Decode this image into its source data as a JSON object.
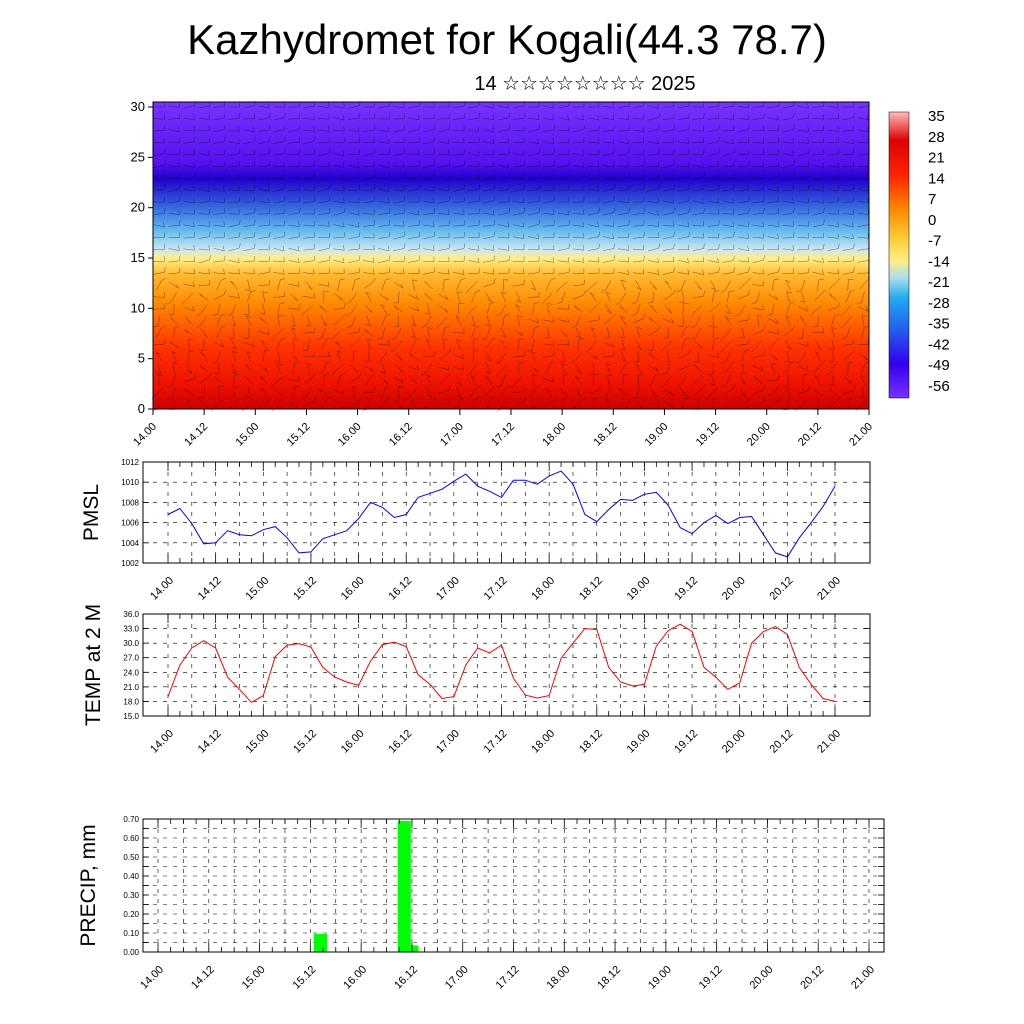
{
  "header": {
    "title": "Kazhydromet for Kogali(44.3 78.7)",
    "subtitle": "14 ☆☆☆☆☆☆☆☆ 2025"
  },
  "colors": {
    "pmsl_line": "#0000ff",
    "temp_line": "#ff0000",
    "precip_bar": "#00ff00",
    "colorbar_hot": "#ff0000",
    "colorbar_mid": "#ffee55",
    "colorbar_cold": "#6600ff"
  },
  "chart_data": [
    {
      "type": "heatmap",
      "name": "cross-section",
      "x_tick_labels": [
        "14.00",
        "14.12",
        "15.00",
        "15.12",
        "16.00",
        "16.12",
        "17.00",
        "17.12",
        "18.00",
        "18.12",
        "19.00",
        "19.12",
        "20.00",
        "20.12",
        "21.00"
      ],
      "y_tick_labels": [
        "0",
        "5",
        "10",
        "15",
        "20",
        "25",
        "30"
      ],
      "ylim": [
        0,
        30.5
      ],
      "colorbar_labels": [
        "35",
        "28",
        "21",
        "14",
        "7",
        "0",
        "-7",
        "-14",
        "-21",
        "-28",
        "-35",
        "-42",
        "-49",
        "-56"
      ],
      "colorbar_range": [
        -60,
        38
      ]
    },
    {
      "type": "line",
      "name": "pmsl",
      "ylabel": "PMSL",
      "ylim": [
        1002,
        1012
      ],
      "y_tick_labels": [
        "1002",
        "1004",
        "1006",
        "1008",
        "1010",
        "1012"
      ],
      "x_tick_labels": [
        "14.00",
        "14.12",
        "15.00",
        "15.12",
        "16.00",
        "16.12",
        "17.00",
        "17.12",
        "18.00",
        "18.12",
        "19.00",
        "19.12",
        "20.00",
        "20.12",
        "21.00"
      ],
      "grid": true,
      "values": [
        1006.8,
        1007.4,
        1005.9,
        1003.9,
        1004.0,
        1005.2,
        1004.8,
        1004.7,
        1005.3,
        1005.6,
        1004.5,
        1003.0,
        1003.1,
        1004.4,
        1004.8,
        1005.2,
        1006.4,
        1008.0,
        1007.5,
        1006.5,
        1006.8,
        1008.5,
        1008.9,
        1009.3,
        1010.1,
        1010.8,
        1009.6,
        1009.1,
        1008.5,
        1010.2,
        1010.2,
        1009.8,
        1010.6,
        1011.1,
        1009.8,
        1006.8,
        1006.1,
        1007.3,
        1008.3,
        1008.2,
        1008.8,
        1009.0,
        1007.7,
        1005.5,
        1004.9,
        1006.0,
        1006.7,
        1005.9,
        1006.5,
        1006.6,
        1004.8,
        1003.0,
        1002.6,
        1004.5,
        1006.0,
        1007.6,
        1009.6
      ]
    },
    {
      "type": "line",
      "name": "temp2m",
      "ylabel": "TEMP at 2 M",
      "ylim": [
        15,
        36
      ],
      "y_tick_labels": [
        "15.0",
        "18.0",
        "21.0",
        "24.0",
        "27.0",
        "30.0",
        "33.0",
        "36.0"
      ],
      "x_tick_labels": [
        "14.00",
        "14.12",
        "15.00",
        "15.12",
        "16.00",
        "16.12",
        "17.00",
        "17.12",
        "18.00",
        "18.12",
        "19.00",
        "19.12",
        "20.00",
        "20.12",
        "21.00"
      ],
      "grid": true,
      "values": [
        19.0,
        25.5,
        29.0,
        30.5,
        29.0,
        23.0,
        20.5,
        17.8,
        19.2,
        27.2,
        29.6,
        29.9,
        29.2,
        25.0,
        23.0,
        22.0,
        21.3,
        26.3,
        29.7,
        30.2,
        29.3,
        23.5,
        21.5,
        18.6,
        19.0,
        25.5,
        29.0,
        28.0,
        29.6,
        22.8,
        19.3,
        18.7,
        19.2,
        26.9,
        30.0,
        33.0,
        32.8,
        25.0,
        22.0,
        21.2,
        21.5,
        29.4,
        32.6,
        33.9,
        32.4,
        25.0,
        23.0,
        20.5,
        21.8,
        30.0,
        32.4,
        33.4,
        31.8,
        25.0,
        21.5,
        18.6,
        18.0
      ]
    },
    {
      "type": "bar",
      "name": "precip",
      "ylabel": "PRECIP, mm",
      "ylim": [
        0,
        0.7
      ],
      "y_tick_labels": [
        "0.00",
        "0.10",
        "0.20",
        "0.30",
        "0.40",
        "0.50",
        "0.60",
        "0.70"
      ],
      "x_tick_labels": [
        "14.00",
        "14.12",
        "15.00",
        "15.12",
        "16.00",
        "16.12",
        "17.00",
        "17.12",
        "18.00",
        "18.12",
        "19.00",
        "19.12",
        "20.00",
        "20.12",
        "21.00"
      ],
      "grid": true,
      "bars": [
        {
          "t": 12.8,
          "value": 0.095
        },
        {
          "t": 19.4,
          "value": 0.69
        },
        {
          "t": 20.0,
          "value": 0.035
        }
      ]
    }
  ]
}
